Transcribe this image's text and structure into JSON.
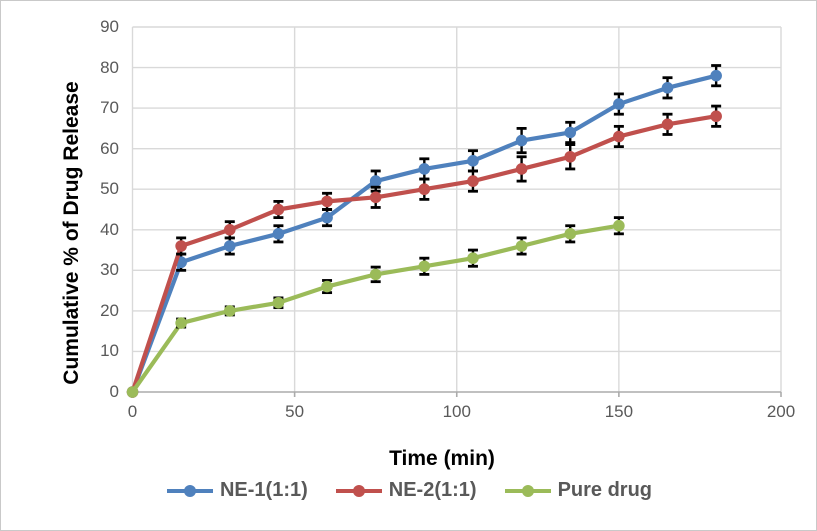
{
  "chart_data": {
    "type": "line",
    "xlabel": "Time (min)",
    "ylabel": "Cumulative % of Drug Release",
    "xlim": [
      0,
      200
    ],
    "ylim": [
      0,
      90
    ],
    "xticks": [
      0,
      50,
      100,
      150,
      200
    ],
    "yticks": [
      0,
      10,
      20,
      30,
      40,
      50,
      60,
      70,
      80,
      90
    ],
    "grid": true,
    "legend_position": "bottom",
    "error_bars": true,
    "series": [
      {
        "name": "NE-1(1:1)",
        "color": "#4F81BD",
        "x": [
          0,
          15,
          30,
          45,
          60,
          75,
          90,
          105,
          120,
          135,
          150,
          165,
          180
        ],
        "values": [
          0,
          32,
          36,
          39,
          43,
          52,
          55,
          57,
          62,
          64,
          71,
          75,
          78
        ],
        "errors": [
          0,
          2,
          2,
          2,
          2,
          2.5,
          2.5,
          2.5,
          3,
          2.5,
          2.5,
          2.5,
          2.5
        ]
      },
      {
        "name": "NE-2(1:1)",
        "color": "#C0504D",
        "x": [
          0,
          15,
          30,
          45,
          60,
          75,
          90,
          105,
          120,
          135,
          150,
          165,
          180
        ],
        "values": [
          0,
          36,
          40,
          45,
          47,
          48,
          50,
          52,
          55,
          58,
          63,
          66,
          68
        ],
        "errors": [
          0,
          2,
          2,
          2,
          2,
          2.5,
          2.5,
          2.5,
          3,
          3,
          2.5,
          2.5,
          2.5
        ]
      },
      {
        "name": "Pure drug",
        "color": "#9BBB59",
        "x": [
          0,
          15,
          30,
          45,
          60,
          75,
          90,
          105,
          120,
          135,
          150
        ],
        "values": [
          0,
          17,
          20,
          22,
          26,
          29,
          31,
          33,
          36,
          39,
          41
        ],
        "errors": [
          0,
          1,
          1,
          1.2,
          1.5,
          1.8,
          2,
          2,
          2,
          2,
          2
        ]
      }
    ],
    "colors": {
      "gridline": "#D9D9D9",
      "axis_line": "#ABABAB",
      "tick_text": "#595959",
      "error_bar": "#000000",
      "border": "#C9C9C9"
    }
  }
}
